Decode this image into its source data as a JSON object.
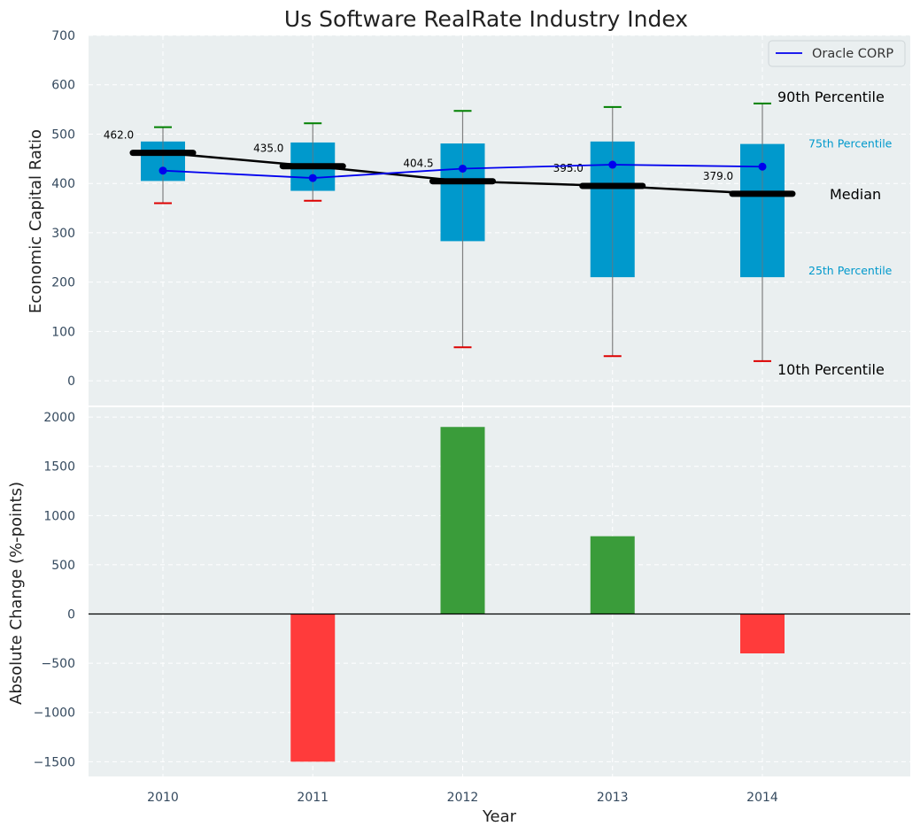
{
  "chart_data": [
    {
      "type": "box",
      "title": "Us Software RealRate Industry Index",
      "xlabel": "",
      "ylabel": "Economic Capital Ratio",
      "categories": [
        "2010",
        "2011",
        "2012",
        "2013",
        "2014"
      ],
      "ylim": [
        -50,
        700
      ],
      "yticks": [
        0,
        100,
        200,
        300,
        400,
        500,
        600,
        700
      ],
      "grid": true,
      "boxes": [
        {
          "year": "2010",
          "p10": 360,
          "p25": 405,
          "median": 462.0,
          "p75": 485,
          "p90": 514
        },
        {
          "year": "2011",
          "p10": 365,
          "p25": 385,
          "median": 435.0,
          "p75": 483,
          "p90": 522
        },
        {
          "year": "2012",
          "p10": 68,
          "p25": 283,
          "median": 404.5,
          "p75": 481,
          "p90": 547
        },
        {
          "year": "2013",
          "p10": 50,
          "p25": 210,
          "median": 395.0,
          "p75": 485,
          "p90": 555
        },
        {
          "year": "2014",
          "p10": 40,
          "p25": 210,
          "median": 379.0,
          "p75": 480,
          "p90": 562
        }
      ],
      "median_labels": [
        "462.0",
        "435.0",
        "404.5",
        "395.0",
        "379.0"
      ],
      "series": [
        {
          "name": "Oracle CORP",
          "color": "#0000ee",
          "values": [
            426,
            411,
            430,
            438,
            434
          ]
        }
      ],
      "legend": {
        "placement": "top-right",
        "entries": [
          "Oracle CORP"
        ]
      },
      "annotations": {
        "p90": "90th Percentile",
        "p75": "75th Percentile",
        "median": "Median",
        "p25": "25th Percentile",
        "p10": "10th Percentile"
      },
      "colors": {
        "box": "#0099cc",
        "median": "#000000",
        "whisker_high": "#008000",
        "whisker_low": "#dd0000",
        "background": "#eaeff0"
      }
    },
    {
      "type": "bar",
      "xlabel": "Year",
      "ylabel": "Absolute Change (%-points)",
      "categories": [
        "2010",
        "2011",
        "2012",
        "2013",
        "2014"
      ],
      "values": [
        0,
        -1500,
        1900,
        790,
        -400
      ],
      "ylim": [
        -1650,
        2100
      ],
      "yticks": [
        -1500,
        -1000,
        -500,
        0,
        500,
        1000,
        1500,
        2000
      ],
      "ytick_labels": [
        "−1500",
        "−1000",
        "−500",
        "0",
        "500",
        "1000",
        "1500",
        "2000"
      ],
      "grid": true,
      "colors": {
        "positive": "#3a9c3a",
        "negative": "#ff3b3b"
      }
    }
  ]
}
